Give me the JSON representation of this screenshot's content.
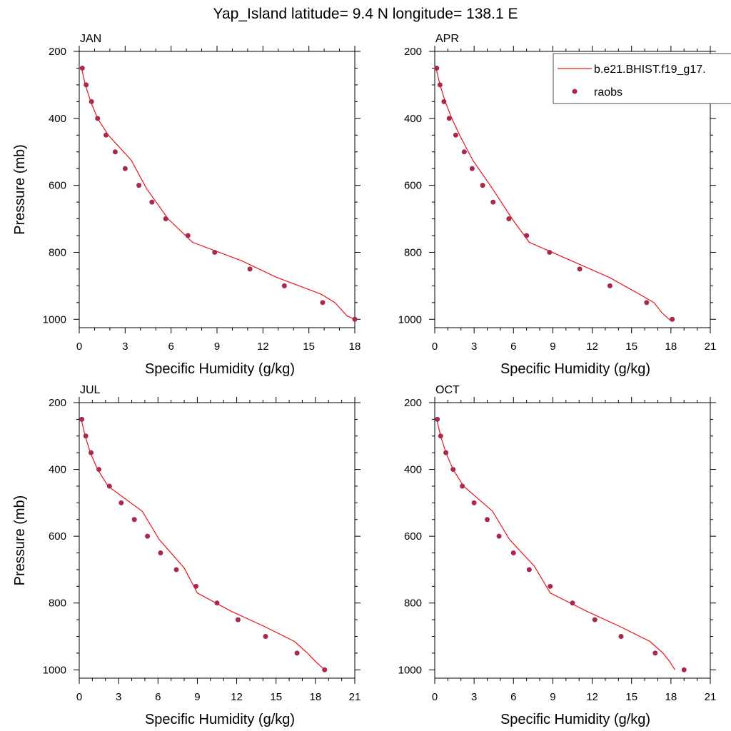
{
  "title": "Yap_Island  latitude= 9.4 N longitude= 138.1 E",
  "legend": {
    "model_label": "b.e21.BHIST.f19_g17.",
    "obs_label": "raobs",
    "placement": "top-right"
  },
  "colors": {
    "model_line": "#e8141c",
    "obs_marker": "#a8284f"
  },
  "chart_data": [
    {
      "type": "line",
      "panel_label": "JAN",
      "xlabel": "Specific Humidity (g/kg)",
      "ylabel": "Pressure (mb)",
      "xlim": [
        0,
        18
      ],
      "ylim": [
        1025,
        200
      ],
      "xticks": [
        0,
        3,
        6,
        9,
        12,
        15,
        18
      ],
      "yticks": [
        200,
        400,
        600,
        800,
        1000
      ],
      "y_reversed": true,
      "series": [
        {
          "kind": "line",
          "x": [
            0.15,
            0.4,
            0.75,
            1.2,
            1.9,
            3.4,
            4.4,
            5.8,
            7.4,
            10.6,
            12.9,
            15.8,
            16.7,
            17.5,
            18.0
          ],
          "y": [
            250,
            300,
            350,
            400,
            450,
            525,
            610,
            700,
            770,
            825,
            875,
            925,
            950,
            990,
            1000
          ]
        },
        {
          "kind": "scatter",
          "x": [
            0.2,
            0.45,
            0.8,
            1.2,
            1.75,
            2.35,
            3.0,
            3.9,
            4.75,
            5.65,
            7.1,
            8.85,
            11.15,
            13.4,
            15.9,
            18.0
          ],
          "y": [
            250,
            300,
            350,
            400,
            450,
            500,
            550,
            600,
            650,
            700,
            750,
            800,
            850,
            900,
            950,
            1000
          ]
        }
      ]
    },
    {
      "type": "line",
      "panel_label": "APR",
      "xlabel": "Specific Humidity (g/kg)",
      "ylabel": "",
      "xlim": [
        0,
        21
      ],
      "ylim": [
        1025,
        200
      ],
      "xticks": [
        0,
        3,
        6,
        9,
        12,
        15,
        18,
        21
      ],
      "yticks": [
        200,
        400,
        600,
        800,
        1000
      ],
      "y_reversed": true,
      "series": [
        {
          "kind": "line",
          "x": [
            0.1,
            0.4,
            0.8,
            1.3,
            1.9,
            2.9,
            4.4,
            5.9,
            7.2,
            10.4,
            13.3,
            15.6,
            16.7,
            17.3,
            18.0
          ],
          "y": [
            250,
            300,
            350,
            400,
            450,
            525,
            610,
            700,
            770,
            825,
            875,
            925,
            950,
            980,
            1005
          ]
        },
        {
          "kind": "scatter",
          "x": [
            0.15,
            0.4,
            0.7,
            1.1,
            1.6,
            2.25,
            2.85,
            3.65,
            4.45,
            5.65,
            7.0,
            8.75,
            11.05,
            13.35,
            16.15,
            18.1
          ],
          "y": [
            250,
            300,
            350,
            400,
            450,
            500,
            550,
            600,
            650,
            700,
            750,
            800,
            850,
            900,
            950,
            1000
          ]
        }
      ]
    },
    {
      "type": "line",
      "panel_label": "JUL",
      "xlabel": "Specific Humidity (g/kg)",
      "ylabel": "Pressure (mb)",
      "xlim": [
        0,
        21
      ],
      "ylim": [
        1025,
        200
      ],
      "xticks": [
        0,
        3,
        6,
        9,
        12,
        15,
        18,
        21
      ],
      "yticks": [
        200,
        400,
        600,
        800,
        1000
      ],
      "y_reversed": true,
      "series": [
        {
          "kind": "line",
          "x": [
            0.15,
            0.45,
            0.85,
            1.4,
            2.2,
            4.8,
            6.1,
            8.0,
            9.0,
            11.6,
            14.1,
            16.4,
            17.4,
            18.0,
            18.7
          ],
          "y": [
            250,
            300,
            350,
            400,
            450,
            525,
            610,
            695,
            770,
            825,
            870,
            915,
            950,
            975,
            1000
          ]
        },
        {
          "kind": "scatter",
          "x": [
            0.2,
            0.5,
            0.9,
            1.5,
            2.3,
            3.2,
            4.2,
            5.2,
            6.2,
            7.4,
            8.9,
            10.5,
            12.1,
            14.2,
            16.6,
            18.7
          ],
          "y": [
            250,
            300,
            350,
            400,
            450,
            500,
            550,
            600,
            650,
            700,
            750,
            800,
            850,
            900,
            950,
            1000
          ]
        }
      ]
    },
    {
      "type": "line",
      "panel_label": "OCT",
      "xlabel": "Specific Humidity (g/kg)",
      "ylabel": "",
      "xlim": [
        0,
        21
      ],
      "ylim": [
        1025,
        200
      ],
      "xticks": [
        0,
        3,
        6,
        9,
        12,
        15,
        18,
        21
      ],
      "yticks": [
        200,
        400,
        600,
        800,
        1000
      ],
      "y_reversed": true,
      "series": [
        {
          "kind": "line",
          "x": [
            0.15,
            0.45,
            0.85,
            1.4,
            2.2,
            4.4,
            5.7,
            7.6,
            8.8,
            11.6,
            14.1,
            16.4,
            17.4,
            17.9,
            18.3
          ],
          "y": [
            250,
            300,
            350,
            400,
            450,
            525,
            610,
            690,
            770,
            825,
            870,
            915,
            950,
            975,
            1000
          ]
        },
        {
          "kind": "scatter",
          "x": [
            0.2,
            0.45,
            0.85,
            1.4,
            2.1,
            3.0,
            4.0,
            4.9,
            6.0,
            7.2,
            8.8,
            10.5,
            12.2,
            14.2,
            16.8,
            19.0
          ],
          "y": [
            250,
            300,
            350,
            400,
            450,
            500,
            550,
            600,
            650,
            700,
            750,
            800,
            850,
            900,
            950,
            1000
          ]
        }
      ]
    }
  ]
}
